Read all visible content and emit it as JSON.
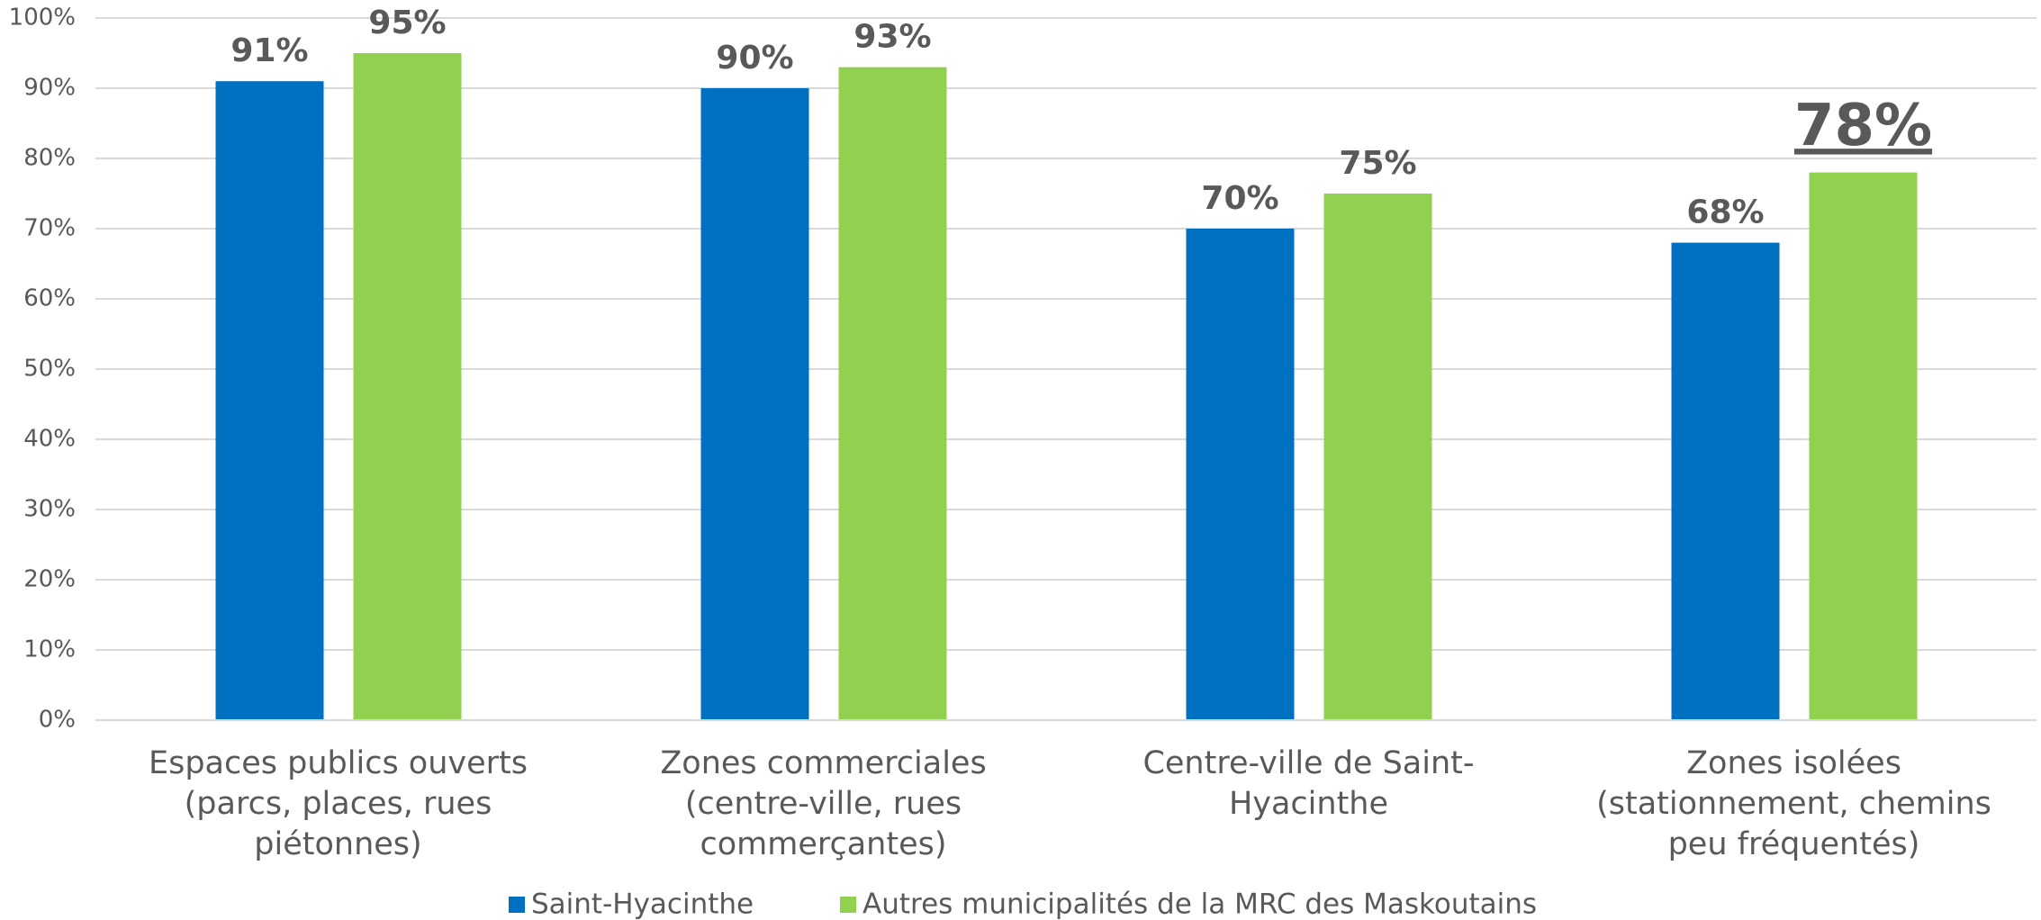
{
  "chart_data": {
    "type": "bar",
    "categories": [
      [
        "Espaces publics ouverts",
        "(parcs, places, rues",
        "piétonnes)"
      ],
      [
        "Zones commerciales",
        "(centre-ville, rues",
        "commerçantes)"
      ],
      [
        "Centre-ville de Saint-",
        "Hyacinthe"
      ],
      [
        "Zones isolées",
        "(stationnement, chemins",
        "peu fréquentés)"
      ]
    ],
    "series": [
      {
        "name": "Saint-Hyacinthe",
        "color": "#0070c0",
        "values": [
          91,
          90,
          70,
          68
        ],
        "value_labels": [
          "91%",
          "90%",
          "70%",
          "68%"
        ]
      },
      {
        "name": "Autres municipalités de la MRC des Maskoutains",
        "color": "#92d050",
        "values": [
          95,
          93,
          75,
          78
        ],
        "value_labels": [
          "95%",
          "93%",
          "75%",
          "78%"
        ]
      }
    ],
    "ylim": [
      0,
      100
    ],
    "yticks": [
      {
        "value": 0,
        "label": "0%"
      },
      {
        "value": 10,
        "label": "10%"
      },
      {
        "value": 20,
        "label": "20%"
      },
      {
        "value": 30,
        "label": "30%"
      },
      {
        "value": 40,
        "label": "40%"
      },
      {
        "value": 50,
        "label": "50%"
      },
      {
        "value": 60,
        "label": "60%"
      },
      {
        "value": 70,
        "label": "70%"
      },
      {
        "value": 80,
        "label": "80%"
      },
      {
        "value": 90,
        "label": "90%"
      },
      {
        "value": 100,
        "label": "100%"
      }
    ],
    "grid": true,
    "legend": "bottom"
  }
}
